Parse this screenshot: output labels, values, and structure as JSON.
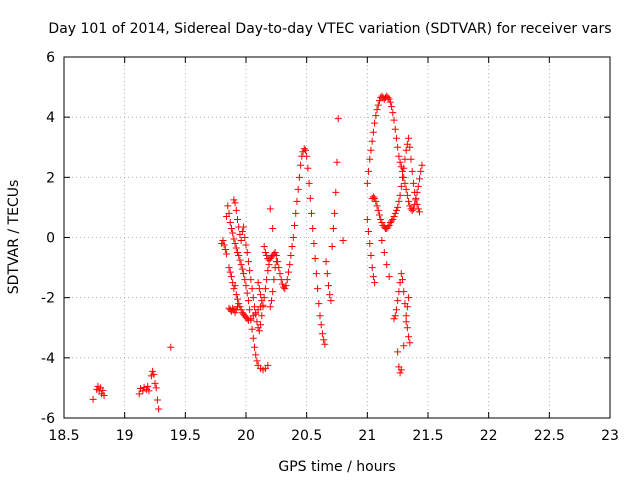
{
  "chart_data": {
    "type": "scatter",
    "title": "Day 101 of 2014, Sidereal Day-to-day VTEC variation (SDTVAR) for receiver vars",
    "xlabel": "GPS time / hours",
    "ylabel": "SDTVAR / TECUs",
    "xlim": [
      18.5,
      23
    ],
    "ylim": [
      -6,
      6
    ],
    "xticks": [
      18.5,
      19,
      19.5,
      20,
      20.5,
      21,
      21.5,
      22,
      22.5,
      23
    ],
    "xtick_labels": [
      "18.5",
      "19",
      "19.5",
      "20",
      "20.5",
      "21",
      "21.5",
      "22",
      "22.5",
      "23"
    ],
    "yticks": [
      -6,
      -4,
      -2,
      0,
      2,
      4,
      6
    ],
    "ytick_labels": [
      "-6",
      "-4",
      "-2",
      "0",
      "2",
      "4",
      "6"
    ],
    "grid": true,
    "marker": "+",
    "color": "#ff0000",
    "series": [
      {
        "name": "vars",
        "points": [
          [
            18.74,
            -5.38
          ],
          [
            18.77,
            -5.05
          ],
          [
            18.78,
            -4.95
          ],
          [
            18.79,
            -5.1
          ],
          [
            18.8,
            -5.0
          ],
          [
            18.81,
            -5.2
          ],
          [
            18.82,
            -5.08
          ],
          [
            18.83,
            -5.25
          ],
          [
            19.12,
            -5.2
          ],
          [
            19.13,
            -5.02
          ],
          [
            19.15,
            -5.1
          ],
          [
            19.16,
            -4.98
          ],
          [
            19.18,
            -5.05
          ],
          [
            19.19,
            -4.95
          ],
          [
            19.2,
            -5.1
          ],
          [
            19.22,
            -4.6
          ],
          [
            19.23,
            -4.45
          ],
          [
            19.24,
            -4.55
          ],
          [
            19.25,
            -4.85
          ],
          [
            19.26,
            -5.0
          ],
          [
            19.27,
            -5.4
          ],
          [
            19.28,
            -5.7
          ],
          [
            19.38,
            -3.65
          ],
          [
            19.8,
            -0.2
          ],
          [
            19.81,
            -0.1
          ],
          [
            19.82,
            -0.25
          ],
          [
            19.83,
            -0.4
          ],
          [
            19.84,
            -0.55
          ],
          [
            19.84,
            0.7
          ],
          [
            19.85,
            1.05
          ],
          [
            19.86,
            0.8
          ],
          [
            19.87,
            0.5
          ],
          [
            19.88,
            0.3
          ],
          [
            19.89,
            0.15
          ],
          [
            19.9,
            -0.05
          ],
          [
            19.91,
            -0.2
          ],
          [
            19.92,
            -0.35
          ],
          [
            19.93,
            -0.5
          ],
          [
            19.94,
            -0.6
          ],
          [
            19.95,
            -0.75
          ],
          [
            19.96,
            -0.9
          ],
          [
            19.97,
            -1.05
          ],
          [
            19.98,
            -1.2
          ],
          [
            19.99,
            -1.4
          ],
          [
            20.0,
            -1.6
          ],
          [
            20.01,
            -1.85
          ],
          [
            20.02,
            -2.1
          ],
          [
            20.03,
            -2.4
          ],
          [
            20.04,
            -2.75
          ],
          [
            20.05,
            -3.05
          ],
          [
            20.06,
            -3.35
          ],
          [
            20.07,
            -3.65
          ],
          [
            20.08,
            -3.9
          ],
          [
            20.09,
            -4.1
          ],
          [
            20.1,
            -4.25
          ],
          [
            20.12,
            -4.35
          ],
          [
            20.14,
            -4.4
          ],
          [
            20.16,
            -4.35
          ],
          [
            20.18,
            -4.25
          ],
          [
            19.86,
            -1.0
          ],
          [
            19.87,
            -1.15
          ],
          [
            19.88,
            -1.3
          ],
          [
            19.89,
            -1.5
          ],
          [
            19.9,
            -1.7
          ],
          [
            19.91,
            -1.6
          ],
          [
            19.92,
            -1.9
          ],
          [
            19.93,
            -2.05
          ],
          [
            19.94,
            -2.2
          ],
          [
            19.95,
            -2.3
          ],
          [
            19.96,
            -2.4
          ],
          [
            19.97,
            -2.5
          ],
          [
            19.98,
            -2.55
          ],
          [
            19.99,
            -2.6
          ],
          [
            20.0,
            -2.65
          ],
          [
            20.01,
            -2.7
          ],
          [
            20.02,
            -2.75
          ],
          [
            20.04,
            -2.7
          ],
          [
            20.06,
            -2.6
          ],
          [
            20.08,
            -2.5
          ],
          [
            20.1,
            -2.4
          ],
          [
            20.12,
            -2.3
          ],
          [
            20.14,
            -2.25
          ],
          [
            19.86,
            -2.35
          ],
          [
            19.87,
            -2.4
          ],
          [
            19.88,
            -2.45
          ],
          [
            19.89,
            -2.35
          ],
          [
            19.9,
            -2.4
          ],
          [
            19.91,
            -2.5
          ],
          [
            19.92,
            -2.4
          ],
          [
            19.93,
            -2.3
          ],
          [
            19.9,
            1.25
          ],
          [
            19.91,
            1.15
          ],
          [
            19.92,
            0.9
          ],
          [
            19.93,
            0.6
          ],
          [
            19.94,
            0.35
          ],
          [
            19.95,
            0.1
          ],
          [
            19.96,
            -0.1
          ],
          [
            19.97,
            0.2
          ],
          [
            19.98,
            0.35
          ],
          [
            19.99,
            0.0
          ],
          [
            20.0,
            -0.25
          ],
          [
            20.01,
            -0.5
          ],
          [
            20.02,
            -0.8
          ],
          [
            20.03,
            -1.1
          ],
          [
            20.04,
            -1.4
          ],
          [
            20.05,
            -1.7
          ],
          [
            20.06,
            -2.0
          ],
          [
            20.07,
            -2.3
          ],
          [
            20.08,
            -2.55
          ],
          [
            20.09,
            -2.8
          ],
          [
            20.1,
            -3.0
          ],
          [
            20.11,
            -3.1
          ],
          [
            20.12,
            -2.9
          ],
          [
            20.13,
            -2.6
          ],
          [
            20.14,
            -2.3
          ],
          [
            20.15,
            -2.0
          ],
          [
            20.16,
            -1.7
          ],
          [
            20.17,
            -1.4
          ],
          [
            20.18,
            -1.1
          ],
          [
            20.19,
            -0.9
          ],
          [
            20.1,
            -1.5
          ],
          [
            20.11,
            -1.7
          ],
          [
            20.12,
            -1.9
          ],
          [
            20.13,
            -2.1
          ],
          [
            20.15,
            -0.3
          ],
          [
            20.16,
            -0.5
          ],
          [
            20.17,
            -0.6
          ],
          [
            20.18,
            -0.7
          ],
          [
            20.19,
            -0.75
          ],
          [
            20.2,
            -0.7
          ],
          [
            20.21,
            -0.65
          ],
          [
            20.22,
            -0.6
          ],
          [
            20.23,
            -0.55
          ],
          [
            20.24,
            -0.5
          ],
          [
            20.25,
            -0.6
          ],
          [
            20.26,
            -0.8
          ],
          [
            20.27,
            -1.0
          ],
          [
            20.28,
            -1.2
          ],
          [
            20.29,
            -1.4
          ],
          [
            20.3,
            -1.55
          ],
          [
            20.31,
            -1.65
          ],
          [
            20.32,
            -1.7
          ],
          [
            20.33,
            -1.6
          ],
          [
            20.34,
            -1.4
          ],
          [
            20.35,
            -1.15
          ],
          [
            20.36,
            -0.9
          ],
          [
            20.37,
            -0.6
          ],
          [
            20.38,
            -0.3
          ],
          [
            20.39,
            0.0
          ],
          [
            20.4,
            0.4
          ],
          [
            20.41,
            0.8
          ],
          [
            20.42,
            1.2
          ],
          [
            20.43,
            1.6
          ],
          [
            20.44,
            2.0
          ],
          [
            20.45,
            2.4
          ],
          [
            20.46,
            2.7
          ],
          [
            20.47,
            2.85
          ],
          [
            20.48,
            2.95
          ],
          [
            20.49,
            2.9
          ],
          [
            20.5,
            2.7
          ],
          [
            20.51,
            2.3
          ],
          [
            20.52,
            1.8
          ],
          [
            20.53,
            1.3
          ],
          [
            20.54,
            0.8
          ],
          [
            20.55,
            0.3
          ],
          [
            20.56,
            -0.2
          ],
          [
            20.57,
            -0.7
          ],
          [
            20.58,
            -1.2
          ],
          [
            20.59,
            -1.7
          ],
          [
            20.6,
            -2.2
          ],
          [
            20.61,
            -2.6
          ],
          [
            20.62,
            -2.9
          ],
          [
            20.63,
            -3.2
          ],
          [
            20.64,
            -3.4
          ],
          [
            20.65,
            -3.55
          ],
          [
            20.2,
            -2.3
          ],
          [
            20.21,
            -2.1
          ],
          [
            20.22,
            -1.8
          ],
          [
            20.23,
            -1.4
          ],
          [
            20.24,
            -1.0
          ],
          [
            20.25,
            -0.8
          ],
          [
            20.2,
            0.95
          ],
          [
            20.22,
            0.3
          ],
          [
            20.66,
            -0.8
          ],
          [
            20.67,
            -1.2
          ],
          [
            20.68,
            -1.6
          ],
          [
            20.69,
            -1.9
          ],
          [
            20.7,
            -2.1
          ],
          [
            20.71,
            -0.3
          ],
          [
            20.72,
            0.3
          ],
          [
            20.73,
            0.8
          ],
          [
            20.74,
            1.5
          ],
          [
            20.75,
            2.5
          ],
          [
            20.76,
            3.95
          ],
          [
            20.8,
            -0.1
          ],
          [
            21.0,
            1.8
          ],
          [
            21.01,
            2.2
          ],
          [
            21.02,
            2.6
          ],
          [
            21.03,
            2.9
          ],
          [
            21.04,
            3.2
          ],
          [
            21.05,
            3.5
          ],
          [
            21.06,
            3.8
          ],
          [
            21.07,
            4.05
          ],
          [
            21.08,
            4.25
          ],
          [
            21.09,
            4.4
          ],
          [
            21.1,
            4.55
          ],
          [
            21.11,
            4.65
          ],
          [
            21.12,
            4.7
          ],
          [
            21.13,
            4.65
          ],
          [
            21.14,
            4.6
          ],
          [
            21.15,
            4.65
          ],
          [
            21.16,
            4.7
          ],
          [
            21.17,
            4.65
          ],
          [
            21.18,
            4.6
          ],
          [
            21.19,
            4.5
          ],
          [
            21.2,
            4.35
          ],
          [
            21.21,
            4.15
          ],
          [
            21.22,
            3.9
          ],
          [
            21.23,
            3.6
          ],
          [
            21.24,
            3.3
          ],
          [
            21.25,
            3.0
          ],
          [
            21.26,
            2.7
          ],
          [
            21.27,
            2.5
          ],
          [
            21.28,
            2.35
          ],
          [
            21.29,
            2.2
          ],
          [
            21.3,
            2.0
          ],
          [
            21.31,
            1.8
          ],
          [
            21.32,
            1.6
          ],
          [
            21.33,
            1.4
          ],
          [
            21.34,
            1.2
          ],
          [
            21.35,
            1.05
          ],
          [
            21.36,
            0.95
          ],
          [
            21.37,
            0.9
          ],
          [
            21.38,
            0.95
          ],
          [
            21.39,
            1.1
          ],
          [
            21.4,
            1.3
          ],
          [
            21.41,
            1.5
          ],
          [
            21.42,
            1.7
          ],
          [
            21.43,
            1.95
          ],
          [
            21.44,
            2.2
          ],
          [
            21.45,
            2.4
          ],
          [
            21.0,
            0.6
          ],
          [
            21.01,
            0.2
          ],
          [
            21.02,
            -0.2
          ],
          [
            21.03,
            -0.6
          ],
          [
            21.04,
            -1.0
          ],
          [
            21.05,
            -1.3
          ],
          [
            21.06,
            -1.5
          ],
          [
            21.04,
            1.3
          ],
          [
            21.05,
            1.35
          ],
          [
            21.06,
            1.3
          ],
          [
            21.07,
            1.2
          ],
          [
            21.08,
            1.05
          ],
          [
            21.09,
            0.9
          ],
          [
            21.1,
            0.75
          ],
          [
            21.11,
            0.6
          ],
          [
            21.12,
            0.5
          ],
          [
            21.13,
            0.4
          ],
          [
            21.14,
            0.35
          ],
          [
            21.15,
            0.3
          ],
          [
            21.16,
            0.3
          ],
          [
            21.17,
            0.35
          ],
          [
            21.18,
            0.4
          ],
          [
            21.19,
            0.5
          ],
          [
            21.2,
            0.55
          ],
          [
            21.21,
            0.6
          ],
          [
            21.22,
            0.7
          ],
          [
            21.23,
            0.8
          ],
          [
            21.24,
            0.9
          ],
          [
            21.25,
            1.0
          ],
          [
            21.26,
            1.2
          ],
          [
            21.27,
            1.4
          ],
          [
            21.28,
            1.7
          ],
          [
            21.29,
            2.0
          ],
          [
            21.3,
            2.3
          ],
          [
            21.31,
            2.6
          ],
          [
            21.32,
            2.9
          ],
          [
            21.33,
            3.1
          ],
          [
            21.34,
            3.3
          ],
          [
            21.35,
            3.0
          ],
          [
            21.36,
            2.6
          ],
          [
            21.37,
            2.2
          ],
          [
            21.38,
            1.8
          ],
          [
            21.39,
            1.5
          ],
          [
            21.4,
            1.25
          ],
          [
            21.41,
            1.1
          ],
          [
            21.42,
            0.95
          ],
          [
            21.43,
            0.85
          ],
          [
            21.12,
            -0.1
          ],
          [
            21.14,
            -0.5
          ],
          [
            21.16,
            -0.9
          ],
          [
            21.18,
            -1.3
          ],
          [
            21.22,
            -2.7
          ],
          [
            21.23,
            -2.6
          ],
          [
            21.24,
            -2.4
          ],
          [
            21.25,
            -2.1
          ],
          [
            21.26,
            -1.8
          ],
          [
            21.27,
            -1.5
          ],
          [
            21.28,
            -1.2
          ],
          [
            21.29,
            -1.4
          ],
          [
            21.3,
            -1.8
          ],
          [
            21.31,
            -2.2
          ],
          [
            21.32,
            -2.6
          ],
          [
            21.33,
            -3.0
          ],
          [
            21.34,
            -3.3
          ],
          [
            21.35,
            -3.5
          ],
          [
            21.25,
            -3.8
          ],
          [
            21.26,
            -4.3
          ],
          [
            21.27,
            -4.5
          ],
          [
            21.28,
            -4.4
          ],
          [
            21.3,
            -3.6
          ],
          [
            21.32,
            -2.8
          ],
          [
            21.33,
            -2.3
          ],
          [
            21.34,
            -2.0
          ]
        ]
      }
    ]
  }
}
